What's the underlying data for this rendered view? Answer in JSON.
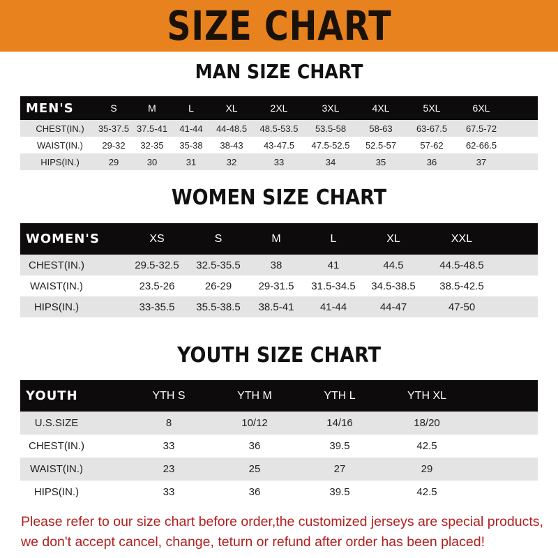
{
  "banner": {
    "title": "SIZE CHART",
    "color": "#e8821e"
  },
  "men": {
    "title": "MAN SIZE CHART",
    "header": [
      "MEN'S",
      "S",
      "M",
      "L",
      "XL",
      "2XL",
      "3XL",
      "4XL",
      "5XL",
      "6XL"
    ],
    "rows": [
      [
        "CHEST(IN.)",
        "35-37.5",
        "37.5-41",
        "41-44",
        "44-48.5",
        "48.5-53.5",
        "53.5-58",
        "58-63",
        "63-67.5",
        "67.5-72"
      ],
      [
        "WAIST(IN.)",
        "29-32",
        "32-35",
        "35-38",
        "38-43",
        "43-47.5",
        "47.5-52.5",
        "52.5-57",
        "57-62",
        "62-66.5"
      ],
      [
        "HIPS(IN.)",
        "29",
        "30",
        "31",
        "32",
        "33",
        "34",
        "35",
        "36",
        "37"
      ]
    ]
  },
  "women": {
    "title": "WOMEN SIZE CHART",
    "header": [
      "WOMEN'S",
      "XS",
      "S",
      "M",
      "L",
      "XL",
      "XXL"
    ],
    "rows": [
      [
        "CHEST(IN.)",
        "29.5-32.5",
        "32.5-35.5",
        "38",
        "41",
        "44.5",
        "44.5-48.5"
      ],
      [
        "WAIST(IN.)",
        "23.5-26",
        "26-29",
        "29-31.5",
        "31.5-34.5",
        "34.5-38.5",
        "38.5-42.5"
      ],
      [
        "HIPS(IN.)",
        "33-35.5",
        "35.5-38.5",
        "38.5-41",
        "41-44",
        "44-47",
        "47-50"
      ]
    ]
  },
  "youth": {
    "title": "YOUTH SIZE CHART",
    "header": [
      "YOUTH",
      "YTH S",
      "YTH M",
      "YTH L",
      "YTH XL"
    ],
    "rows": [
      [
        "U.S.SIZE",
        "8",
        "10/12",
        "14/16",
        "18/20"
      ],
      [
        "CHEST(IN.)",
        "33",
        "36",
        "39.5",
        "42.5"
      ],
      [
        "WAIST(IN.)",
        "23",
        "25",
        "27",
        "29"
      ],
      [
        "HIPS(IN.)",
        "33",
        "36",
        "39.5",
        "42.5"
      ]
    ]
  },
  "note": {
    "line1": "Please refer to our size chart before order,the customized jerseys are special products,",
    "line2": "we don't accept cancel, change, teturn or refund after order has been placed!",
    "color": "#b0201f"
  }
}
